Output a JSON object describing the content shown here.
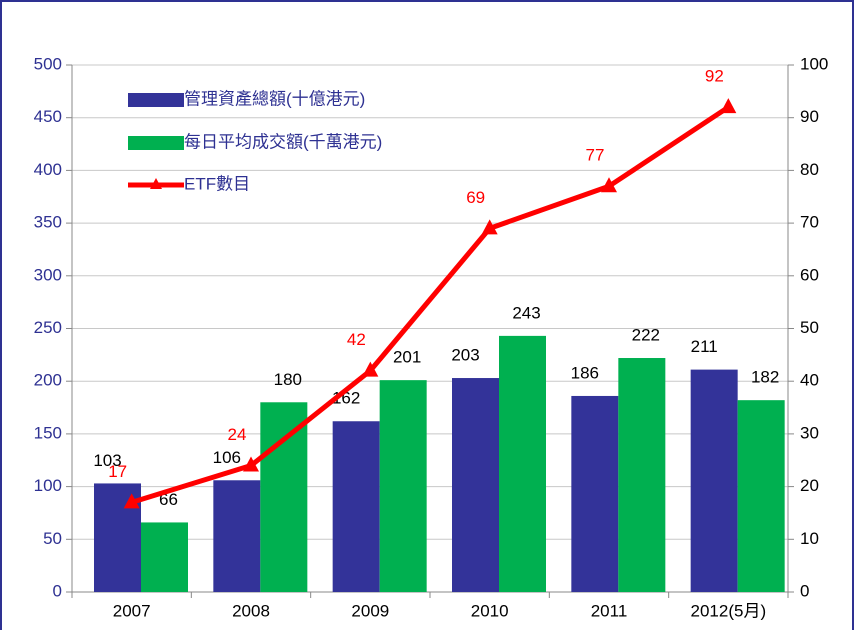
{
  "chart_data": {
    "type": "bar",
    "categories": [
      "2007",
      "2008",
      "2009",
      "2010",
      "2011",
      "2012(5月)"
    ],
    "series": [
      {
        "name": "管理資產總額(十億港元)",
        "color": "#333399",
        "values": [
          103,
          106,
          162,
          203,
          186,
          211
        ]
      },
      {
        "name": "每日平均成交額(千萬港元)",
        "color": "#00b050",
        "values": [
          66,
          180,
          201,
          243,
          222,
          182
        ]
      },
      {
        "name": "ETF數目",
        "color": "#ff0000",
        "type": "line",
        "axis": "y2",
        "values": [
          17,
          24,
          42,
          69,
          77,
          92
        ]
      }
    ],
    "ylim": [
      0,
      500
    ],
    "yticks": [
      0,
      50,
      100,
      150,
      200,
      250,
      300,
      350,
      400,
      450,
      500
    ],
    "y2lim": [
      0,
      100
    ],
    "y2ticks": [
      0,
      10,
      20,
      30,
      40,
      50,
      60,
      70,
      80,
      90,
      100
    ],
    "grid": true,
    "legend": "top-left"
  }
}
